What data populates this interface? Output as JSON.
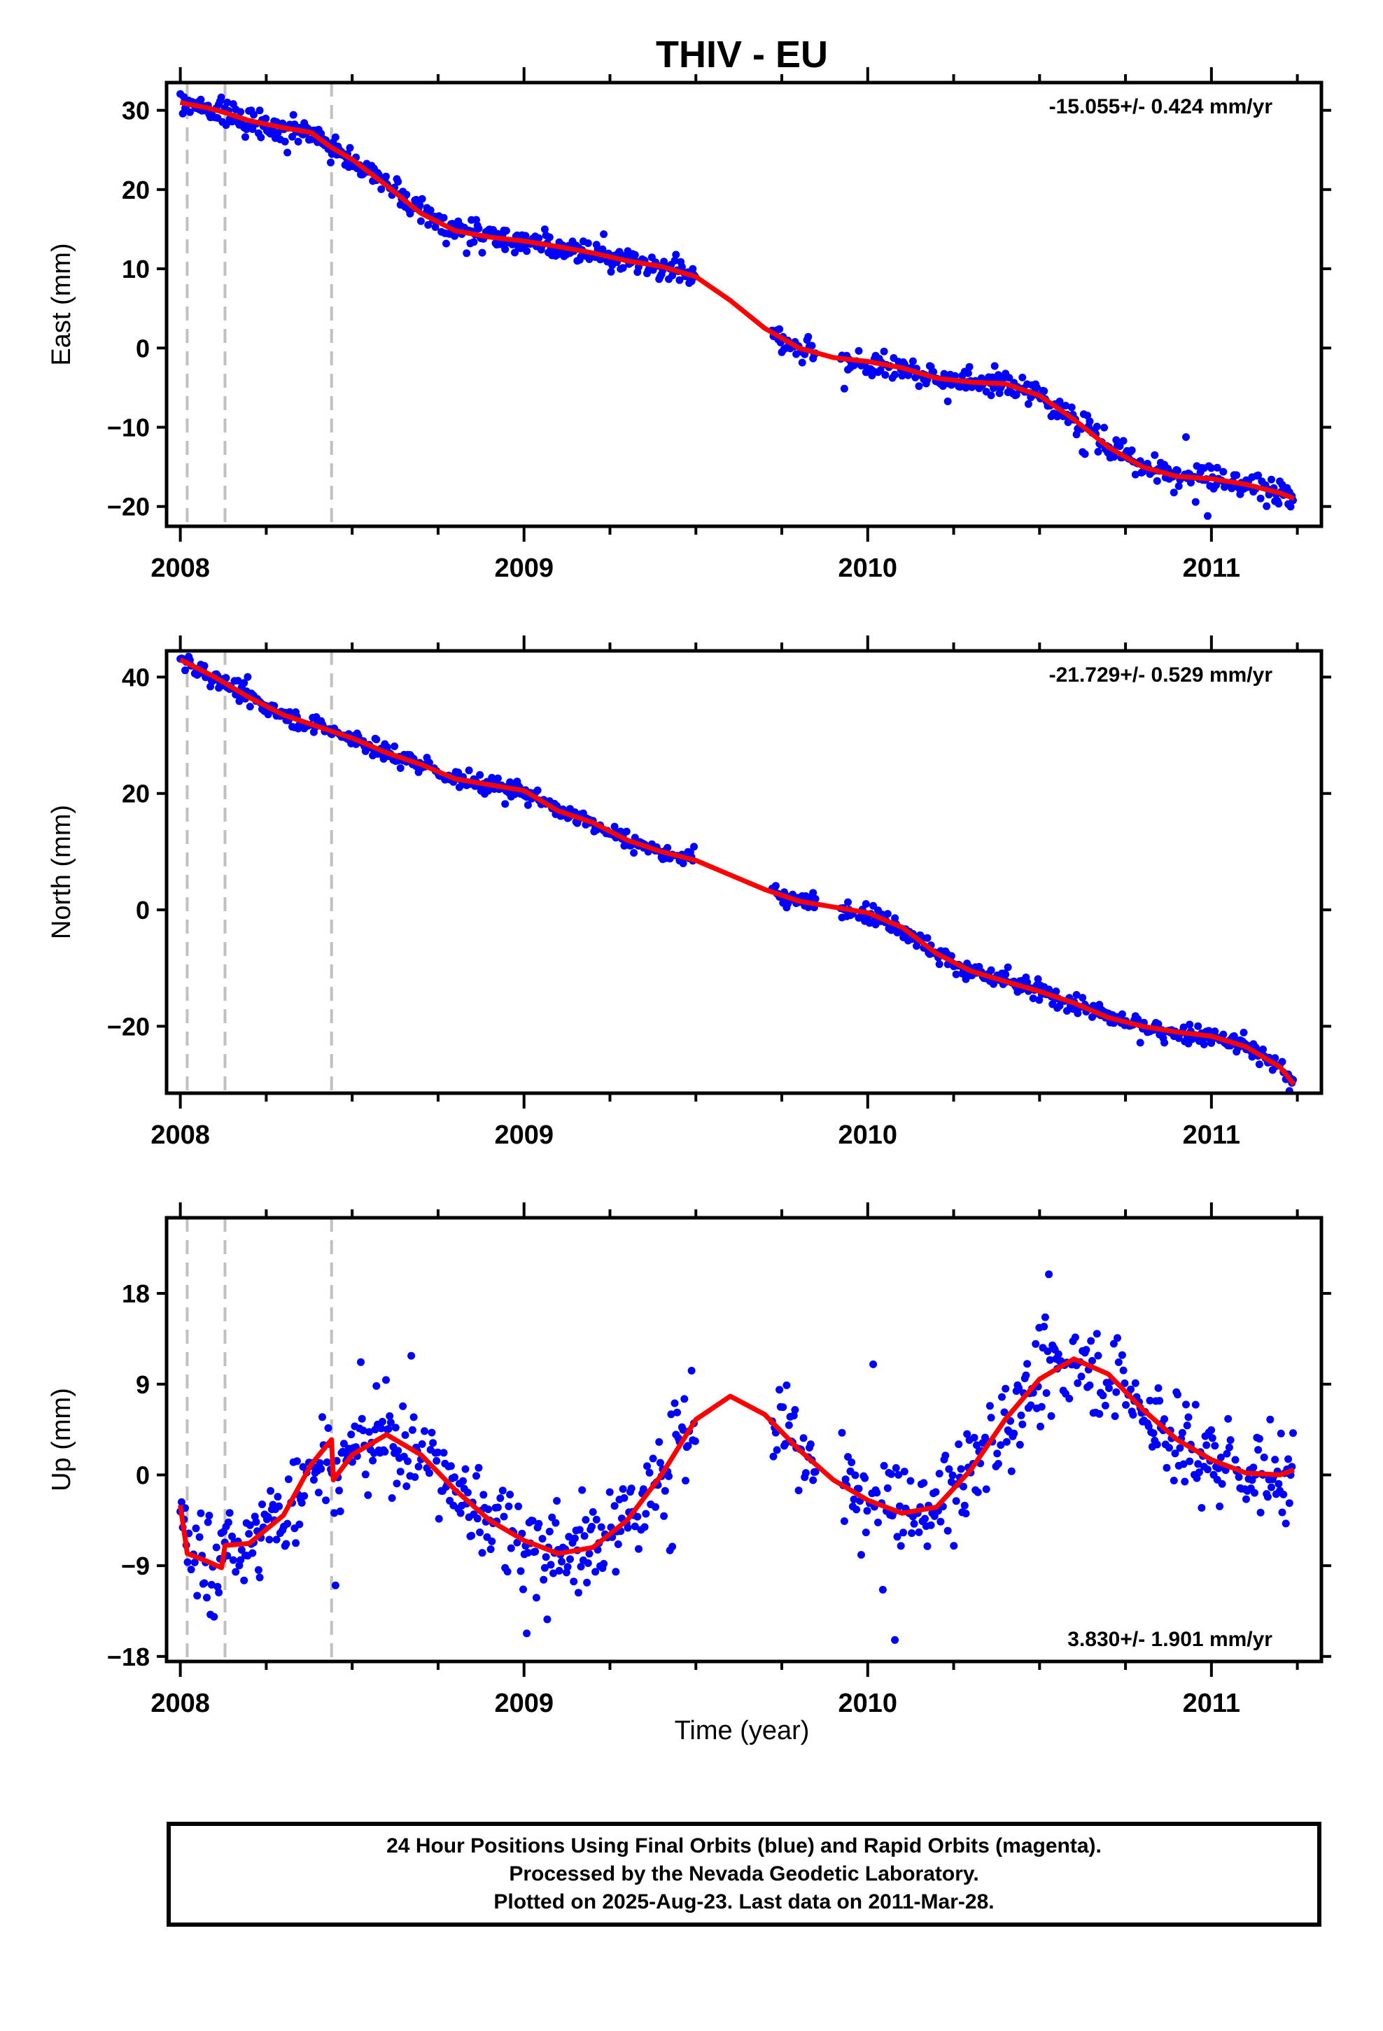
{
  "title": "THIV - EU",
  "xlabel": "Time (year)",
  "x_ticks": [
    "2008",
    "2009",
    "2010",
    "2011"
  ],
  "colors": {
    "points": "#0000ff",
    "fit": "#ff0000",
    "breaks": "#c0c0c0",
    "frame": "#000000"
  },
  "breaks": [
    2008.02,
    2008.13,
    2008.44
  ],
  "footer": {
    "line1": "24 Hour Positions Using Final Orbits (blue) and Rapid Orbits (magenta).",
    "line2": "Processed by the Nevada Geodetic Laboratory.",
    "line3": "Plotted on 2025-Aug-23. Last data on 2011-Mar-28."
  },
  "chart_data": [
    {
      "type": "scatter",
      "ylabel": "East (mm)",
      "rate_label": "-15.055+/- 0.424 mm/yr",
      "rate_position": "top-right",
      "xlim": [
        2007.96,
        2011.32
      ],
      "ylim": [
        -22.5,
        33.5
      ],
      "yticks": [
        30,
        20,
        10,
        0,
        -10,
        -20
      ],
      "tick_labels": [
        "30",
        "20",
        "10",
        "0",
        "−10",
        "−20"
      ],
      "data_start": 2008.0,
      "data_end": 2011.24,
      "gaps": [
        [
          2009.5,
          2009.72
        ],
        [
          2009.85,
          2009.92
        ]
      ],
      "noise_mm": 1.4,
      "model": [
        [
          2008.0,
          31
        ],
        [
          2008.02,
          30.8
        ],
        [
          2008.08,
          30.3
        ],
        [
          2008.13,
          29.7
        ],
        [
          2008.2,
          28.7
        ],
        [
          2008.3,
          27.8
        ],
        [
          2008.38,
          27.2
        ],
        [
          2008.44,
          25.3
        ],
        [
          2008.5,
          23.8
        ],
        [
          2008.6,
          20.5
        ],
        [
          2008.7,
          17
        ],
        [
          2008.8,
          14.8
        ],
        [
          2008.9,
          14
        ],
        [
          2009.0,
          13.5
        ],
        [
          2009.1,
          12.8
        ],
        [
          2009.2,
          12
        ],
        [
          2009.3,
          11
        ],
        [
          2009.4,
          10.3
        ],
        [
          2009.5,
          9
        ],
        [
          2009.6,
          6
        ],
        [
          2009.7,
          2.5
        ],
        [
          2009.8,
          0
        ],
        [
          2009.9,
          -1.2
        ],
        [
          2010.0,
          -1.7
        ],
        [
          2010.1,
          -2.5
        ],
        [
          2010.2,
          -3.8
        ],
        [
          2010.3,
          -4.3
        ],
        [
          2010.4,
          -4.5
        ],
        [
          2010.5,
          -6
        ],
        [
          2010.6,
          -9
        ],
        [
          2010.7,
          -12.5
        ],
        [
          2010.8,
          -15
        ],
        [
          2010.9,
          -16.2
        ],
        [
          2011.0,
          -16.5
        ],
        [
          2011.1,
          -17.2
        ],
        [
          2011.2,
          -18.3
        ],
        [
          2011.24,
          -19
        ]
      ]
    },
    {
      "type": "scatter",
      "ylabel": "North (mm)",
      "rate_label": "-21.729+/- 0.529 mm/yr",
      "rate_position": "top-right",
      "xlim": [
        2007.96,
        2011.32
      ],
      "ylim": [
        -31.5,
        44.5
      ],
      "yticks": [
        40,
        20,
        0,
        -20
      ],
      "tick_labels": [
        "40",
        "20",
        "0",
        "−20"
      ],
      "data_start": 2008.0,
      "data_end": 2011.24,
      "gaps": [
        [
          2009.5,
          2009.72
        ],
        [
          2009.85,
          2009.92
        ]
      ],
      "noise_mm": 1.3,
      "model": [
        [
          2008.0,
          43
        ],
        [
          2008.05,
          41.5
        ],
        [
          2008.1,
          40
        ],
        [
          2008.2,
          36.5
        ],
        [
          2008.3,
          33.5
        ],
        [
          2008.4,
          31.5
        ],
        [
          2008.5,
          29.5
        ],
        [
          2008.6,
          27
        ],
        [
          2008.7,
          25
        ],
        [
          2008.8,
          22.5
        ],
        [
          2008.9,
          21.5
        ],
        [
          2009.0,
          20.5
        ],
        [
          2009.1,
          17
        ],
        [
          2009.2,
          15
        ],
        [
          2009.3,
          12
        ],
        [
          2009.4,
          10
        ],
        [
          2009.5,
          8.5
        ],
        [
          2009.6,
          6
        ],
        [
          2009.7,
          3.5
        ],
        [
          2009.8,
          1.5
        ],
        [
          2009.9,
          0.5
        ],
        [
          2010.0,
          -0.5
        ],
        [
          2010.1,
          -3
        ],
        [
          2010.2,
          -7.5
        ],
        [
          2010.3,
          -10.5
        ],
        [
          2010.4,
          -12.3
        ],
        [
          2010.5,
          -14
        ],
        [
          2010.6,
          -16
        ],
        [
          2010.7,
          -18.5
        ],
        [
          2010.8,
          -20
        ],
        [
          2010.9,
          -21
        ],
        [
          2011.0,
          -21.7
        ],
        [
          2011.1,
          -23.5
        ],
        [
          2011.2,
          -27
        ],
        [
          2011.24,
          -30
        ]
      ]
    },
    {
      "type": "scatter",
      "ylabel": "Up (mm)",
      "rate_label": "3.830+/- 1.901 mm/yr",
      "rate_position": "bottom-right",
      "xlim": [
        2007.96,
        2011.32
      ],
      "ylim": [
        -18.5,
        25.5
      ],
      "yticks": [
        18,
        9,
        0,
        -9,
        -18
      ],
      "tick_labels": [
        "18",
        "9",
        "0",
        "−9",
        "−18"
      ],
      "data_start": 2008.0,
      "data_end": 2011.24,
      "gaps": [
        [
          2009.5,
          2009.72
        ],
        [
          2009.85,
          2009.92
        ]
      ],
      "noise_mm": 3.8,
      "model": [
        [
          2008.0,
          -3
        ],
        [
          2008.02,
          -7.8
        ],
        [
          2008.08,
          -8.6
        ],
        [
          2008.12,
          -9.2
        ],
        [
          2008.13,
          -7
        ],
        [
          2008.2,
          -6.8
        ],
        [
          2008.3,
          -4
        ],
        [
          2008.38,
          1
        ],
        [
          2008.44,
          3.5
        ],
        [
          2008.445,
          -0.5
        ],
        [
          2008.5,
          2
        ],
        [
          2008.6,
          4
        ],
        [
          2008.7,
          2
        ],
        [
          2008.8,
          -1.5
        ],
        [
          2008.9,
          -4.5
        ],
        [
          2009.0,
          -6.5
        ],
        [
          2009.1,
          -7.8
        ],
        [
          2009.2,
          -7.2
        ],
        [
          2009.3,
          -4.5
        ],
        [
          2009.4,
          0
        ],
        [
          2009.5,
          5.5
        ],
        [
          2009.6,
          7.8
        ],
        [
          2009.7,
          6
        ],
        [
          2009.8,
          2.5
        ],
        [
          2009.9,
          -0.5
        ],
        [
          2010.0,
          -2.5
        ],
        [
          2010.1,
          -3.8
        ],
        [
          2010.2,
          -3.2
        ],
        [
          2010.3,
          0.5
        ],
        [
          2010.4,
          5.5
        ],
        [
          2010.5,
          9.5
        ],
        [
          2010.6,
          11.5
        ],
        [
          2010.7,
          10
        ],
        [
          2010.8,
          6.5
        ],
        [
          2010.9,
          3.5
        ],
        [
          2011.0,
          1.5
        ],
        [
          2011.1,
          0.2
        ],
        [
          2011.2,
          0
        ],
        [
          2011.24,
          0.5
        ]
      ]
    }
  ]
}
